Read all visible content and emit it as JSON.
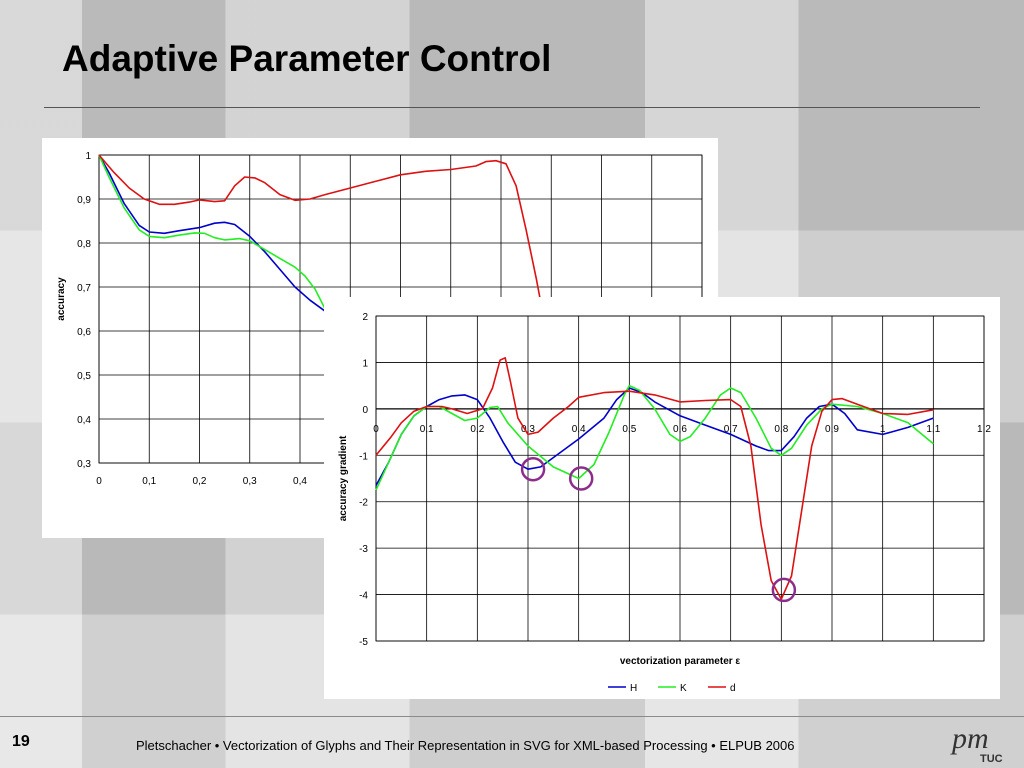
{
  "slide": {
    "title": "Adaptive Parameter Control",
    "page_number": "19",
    "footer": "Pletschacher • Vectorization of Glyphs and Their Representation in SVG for XML-based Processing • ELPUB 2006",
    "logo_text": "pm",
    "logo_subtext": "TUC",
    "colors": {
      "H": "#0000cc",
      "K": "#22ee22",
      "d": "#dd1111",
      "marker": "#8b2e8b"
    }
  },
  "chart_data": [
    {
      "type": "line",
      "title": "",
      "xlabel": "",
      "ylabel": "accuracy",
      "xlim": [
        0,
        1.2
      ],
      "ylim": [
        0.3,
        1
      ],
      "grid": true,
      "x_ticks": [
        0,
        0.1,
        0.2,
        0.3,
        0.4
      ],
      "x_tick_labels": [
        "0",
        "0,1",
        "0,2",
        "0,3",
        "0,4"
      ],
      "y_ticks": [
        0.3,
        0.4,
        0.5,
        0.6,
        0.7,
        0.8,
        0.9,
        1
      ],
      "y_tick_labels": [
        "0,3",
        "0,4",
        "0,5",
        "0,6",
        "0,7",
        "0,8",
        "0,9",
        "1"
      ],
      "series": [
        {
          "name": "H",
          "points": [
            [
              0,
              1
            ],
            [
              0.02,
              0.96
            ],
            [
              0.05,
              0.89
            ],
            [
              0.08,
              0.84
            ],
            [
              0.1,
              0.825
            ],
            [
              0.13,
              0.822
            ],
            [
              0.16,
              0.828
            ],
            [
              0.2,
              0.835
            ],
            [
              0.23,
              0.845
            ],
            [
              0.25,
              0.847
            ],
            [
              0.27,
              0.842
            ],
            [
              0.3,
              0.815
            ],
            [
              0.33,
              0.78
            ],
            [
              0.36,
              0.74
            ],
            [
              0.39,
              0.7
            ],
            [
              0.42,
              0.67
            ],
            [
              0.45,
              0.645
            ]
          ]
        },
        {
          "name": "K",
          "points": [
            [
              0,
              1
            ],
            [
              0.02,
              0.95
            ],
            [
              0.05,
              0.88
            ],
            [
              0.08,
              0.83
            ],
            [
              0.1,
              0.815
            ],
            [
              0.13,
              0.812
            ],
            [
              0.16,
              0.818
            ],
            [
              0.19,
              0.823
            ],
            [
              0.21,
              0.822
            ],
            [
              0.23,
              0.812
            ],
            [
              0.25,
              0.807
            ],
            [
              0.28,
              0.81
            ],
            [
              0.3,
              0.805
            ],
            [
              0.33,
              0.785
            ],
            [
              0.36,
              0.765
            ],
            [
              0.39,
              0.745
            ],
            [
              0.41,
              0.725
            ],
            [
              0.43,
              0.695
            ],
            [
              0.45,
              0.65
            ]
          ]
        },
        {
          "name": "d",
          "points": [
            [
              0,
              1
            ],
            [
              0.03,
              0.96
            ],
            [
              0.06,
              0.925
            ],
            [
              0.09,
              0.9
            ],
            [
              0.12,
              0.888
            ],
            [
              0.15,
              0.888
            ],
            [
              0.18,
              0.893
            ],
            [
              0.2,
              0.898
            ],
            [
              0.23,
              0.894
            ],
            [
              0.25,
              0.896
            ],
            [
              0.27,
              0.93
            ],
            [
              0.29,
              0.95
            ],
            [
              0.31,
              0.948
            ],
            [
              0.33,
              0.937
            ],
            [
              0.36,
              0.91
            ],
            [
              0.39,
              0.897
            ],
            [
              0.42,
              0.9
            ],
            [
              0.45,
              0.91
            ],
            [
              0.5,
              0.925
            ],
            [
              0.55,
              0.94
            ],
            [
              0.6,
              0.955
            ],
            [
              0.65,
              0.963
            ],
            [
              0.7,
              0.967
            ],
            [
              0.75,
              0.975
            ],
            [
              0.77,
              0.985
            ],
            [
              0.79,
              0.987
            ],
            [
              0.81,
              0.98
            ],
            [
              0.83,
              0.93
            ],
            [
              0.85,
              0.83
            ],
            [
              0.87,
              0.72
            ],
            [
              0.88,
              0.66
            ]
          ]
        }
      ]
    },
    {
      "type": "line",
      "title": "",
      "xlabel": "vectorization parameter ε",
      "ylabel": "accuracy gradient",
      "xlim": [
        0,
        1.2
      ],
      "ylim": [
        -5,
        2
      ],
      "grid": true,
      "legend_position": "bottom",
      "x_ticks": [
        0,
        0.1,
        0.2,
        0.3,
        0.4,
        0.5,
        0.6,
        0.7,
        0.8,
        0.9,
        1,
        1.1,
        1.2
      ],
      "x_tick_labels": [
        "0",
        "0,1",
        "0,2",
        "0,3",
        "0,4",
        "0,5",
        "0,6",
        "0,7",
        "0,8",
        "0,9",
        "1",
        "1,1",
        "1,2"
      ],
      "y_ticks": [
        -5,
        -4,
        -3,
        -2,
        -1,
        0,
        1,
        2
      ],
      "y_tick_labels": [
        "-5",
        "-4",
        "-3",
        "-2",
        "-1",
        "0",
        "1",
        "2"
      ],
      "series": [
        {
          "name": "H",
          "points": [
            [
              0,
              -1.65
            ],
            [
              0.025,
              -1.15
            ],
            [
              0.05,
              -0.55
            ],
            [
              0.075,
              -0.15
            ],
            [
              0.1,
              0.05
            ],
            [
              0.125,
              0.2
            ],
            [
              0.15,
              0.28
            ],
            [
              0.175,
              0.3
            ],
            [
              0.2,
              0.2
            ],
            [
              0.225,
              -0.2
            ],
            [
              0.25,
              -0.7
            ],
            [
              0.275,
              -1.15
            ],
            [
              0.3,
              -1.3
            ],
            [
              0.325,
              -1.25
            ],
            [
              0.35,
              -1.05
            ],
            [
              0.4,
              -0.65
            ],
            [
              0.45,
              -0.2
            ],
            [
              0.475,
              0.2
            ],
            [
              0.5,
              0.45
            ],
            [
              0.525,
              0.35
            ],
            [
              0.55,
              0.15
            ],
            [
              0.6,
              -0.15
            ],
            [
              0.65,
              -0.35
            ],
            [
              0.7,
              -0.55
            ],
            [
              0.75,
              -0.8
            ],
            [
              0.775,
              -0.9
            ],
            [
              0.8,
              -0.9
            ],
            [
              0.825,
              -0.6
            ],
            [
              0.85,
              -0.2
            ],
            [
              0.875,
              0.05
            ],
            [
              0.9,
              0.1
            ],
            [
              0.925,
              -0.1
            ],
            [
              0.95,
              -0.45
            ],
            [
              1,
              -0.55
            ],
            [
              1.05,
              -0.4
            ],
            [
              1.1,
              -0.2
            ]
          ]
        },
        {
          "name": "K",
          "points": [
            [
              0,
              -1.75
            ],
            [
              0.025,
              -1.15
            ],
            [
              0.05,
              -0.55
            ],
            [
              0.075,
              -0.15
            ],
            [
              0.1,
              0.05
            ],
            [
              0.125,
              0.05
            ],
            [
              0.15,
              -0.1
            ],
            [
              0.175,
              -0.25
            ],
            [
              0.2,
              -0.2
            ],
            [
              0.225,
              0.03
            ],
            [
              0.24,
              0.05
            ],
            [
              0.26,
              -0.3
            ],
            [
              0.3,
              -0.8
            ],
            [
              0.35,
              -1.25
            ],
            [
              0.4,
              -1.5
            ],
            [
              0.43,
              -1.2
            ],
            [
              0.46,
              -0.5
            ],
            [
              0.49,
              0.3
            ],
            [
              0.5,
              0.5
            ],
            [
              0.52,
              0.4
            ],
            [
              0.55,
              0
            ],
            [
              0.58,
              -0.55
            ],
            [
              0.6,
              -0.7
            ],
            [
              0.62,
              -0.6
            ],
            [
              0.65,
              -0.2
            ],
            [
              0.68,
              0.3
            ],
            [
              0.7,
              0.45
            ],
            [
              0.72,
              0.35
            ],
            [
              0.75,
              -0.2
            ],
            [
              0.78,
              -0.85
            ],
            [
              0.8,
              -1
            ],
            [
              0.82,
              -0.85
            ],
            [
              0.85,
              -0.35
            ],
            [
              0.88,
              0
            ],
            [
              0.9,
              0.1
            ],
            [
              0.95,
              0.05
            ],
            [
              1,
              -0.1
            ],
            [
              1.05,
              -0.3
            ],
            [
              1.1,
              -0.75
            ]
          ]
        },
        {
          "name": "d",
          "points": [
            [
              0,
              -1
            ],
            [
              0.03,
              -0.6
            ],
            [
              0.05,
              -0.3
            ],
            [
              0.075,
              -0.05
            ],
            [
              0.1,
              0.05
            ],
            [
              0.13,
              0.05
            ],
            [
              0.15,
              0
            ],
            [
              0.18,
              -0.1
            ],
            [
              0.21,
              0
            ],
            [
              0.23,
              0.45
            ],
            [
              0.245,
              1.05
            ],
            [
              0.255,
              1.1
            ],
            [
              0.265,
              0.6
            ],
            [
              0.28,
              -0.2
            ],
            [
              0.3,
              -0.55
            ],
            [
              0.32,
              -0.5
            ],
            [
              0.35,
              -0.2
            ],
            [
              0.38,
              0.05
            ],
            [
              0.4,
              0.25
            ],
            [
              0.45,
              0.35
            ],
            [
              0.5,
              0.38
            ],
            [
              0.55,
              0.3
            ],
            [
              0.6,
              0.15
            ],
            [
              0.65,
              0.18
            ],
            [
              0.7,
              0.2
            ],
            [
              0.72,
              0.05
            ],
            [
              0.74,
              -0.8
            ],
            [
              0.76,
              -2.5
            ],
            [
              0.78,
              -3.7
            ],
            [
              0.8,
              -4.1
            ],
            [
              0.82,
              -3.6
            ],
            [
              0.84,
              -2.2
            ],
            [
              0.86,
              -0.8
            ],
            [
              0.88,
              -0.05
            ],
            [
              0.9,
              0.2
            ],
            [
              0.92,
              0.22
            ],
            [
              0.95,
              0.1
            ],
            [
              1,
              -0.1
            ],
            [
              1.05,
              -0.12
            ],
            [
              1.1,
              -0.02
            ]
          ]
        }
      ],
      "highlight_markers": [
        [
          0.31,
          -1.3
        ],
        [
          0.405,
          -1.5
        ],
        [
          0.805,
          -3.9
        ]
      ]
    }
  ]
}
